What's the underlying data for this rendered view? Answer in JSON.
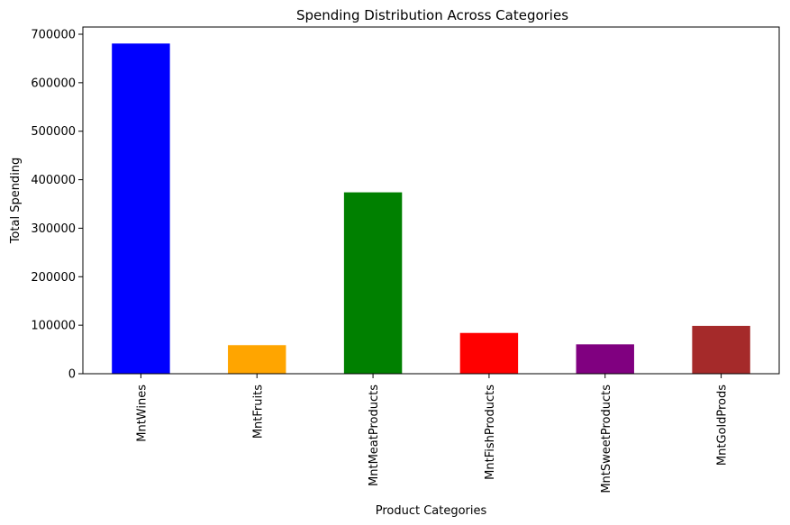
{
  "chart_data": {
    "type": "bar",
    "title": "Spending Distribution Across Categories",
    "xlabel": "Product Categories",
    "ylabel": "Total Spending",
    "categories": [
      "MntWines",
      "MntFruits",
      "MntMeatProducts",
      "MntFishProducts",
      "MntSweetProducts",
      "MntGoldProds"
    ],
    "values": [
      680816,
      58917,
      373968,
      84057,
      60621,
      98609
    ],
    "colors": [
      "#0000ff",
      "#ffa500",
      "#008000",
      "#ff0000",
      "#800080",
      "#a52a2a"
    ],
    "ylim": [
      0,
      714857
    ],
    "yticks": [
      0,
      100000,
      200000,
      300000,
      400000,
      500000,
      600000,
      700000
    ],
    "grid": false,
    "legend": false
  }
}
